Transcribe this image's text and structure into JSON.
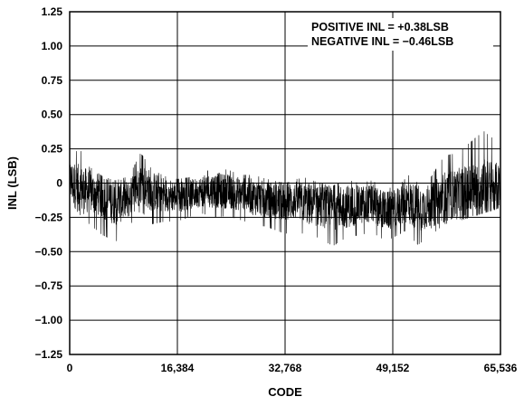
{
  "chart_data": {
    "type": "line",
    "title": "",
    "xlabel": "CODE",
    "ylabel": "INL (LSB)",
    "xlim": [
      0,
      65536
    ],
    "ylim": [
      -1.25,
      1.25
    ],
    "x_ticks": [
      0,
      16384,
      32768,
      49152,
      65536
    ],
    "x_tick_labels": [
      "0",
      "16,384",
      "32,768",
      "49,152",
      "65,536"
    ],
    "y_ticks": [
      1.25,
      1.0,
      0.75,
      0.5,
      0.25,
      0,
      -0.25,
      -0.5,
      -0.75,
      -1.0,
      -1.25
    ],
    "y_tick_labels": [
      "1.25",
      "1.00",
      "0.75",
      "0.50",
      "0.25",
      "0",
      "−0.25",
      "−0.50",
      "−0.75",
      "−1.00",
      "−1.25"
    ],
    "grid": true,
    "colors": {
      "trace": "#000000",
      "grid": "#000000",
      "background": "#ffffff"
    },
    "annotations": [
      "POSITIVE INL = +0.38LSB",
      "NEGATIVE INL = −0.46LSB"
    ],
    "series": [
      {
        "x": [
          0,
          1500,
          3000,
          5000,
          7000,
          9000,
          10800,
          12500,
          14500,
          16384,
          18000,
          20000,
          22000,
          24000,
          26000,
          28000,
          30000,
          32768,
          34500,
          36000,
          38000,
          40000,
          42000,
          44000,
          46000,
          48000,
          49152,
          51000,
          53000,
          55000,
          57000,
          59000,
          61000,
          63000,
          65536
        ],
        "y": [
          0.02,
          -0.05,
          -0.06,
          -0.1,
          -0.14,
          -0.12,
          0.0,
          -0.06,
          -0.08,
          -0.1,
          -0.09,
          -0.06,
          -0.05,
          -0.06,
          -0.08,
          -0.1,
          -0.12,
          -0.14,
          -0.13,
          -0.15,
          -0.17,
          -0.18,
          -0.17,
          -0.16,
          -0.15,
          -0.2,
          -0.2,
          -0.13,
          -0.18,
          -0.17,
          -0.1,
          -0.08,
          -0.06,
          -0.04,
          -0.03
        ],
        "max": [
          0.2,
          0.25,
          0.12,
          0.05,
          0.02,
          0.05,
          0.22,
          0.1,
          0.05,
          0.03,
          0.04,
          0.08,
          0.1,
          0.1,
          0.06,
          0.06,
          0.03,
          0.0,
          0.03,
          0.04,
          0.0,
          -0.02,
          0.03,
          0.0,
          0.02,
          -0.04,
          -0.03,
          0.08,
          0.0,
          0.05,
          0.2,
          0.22,
          0.3,
          0.38,
          0.28
        ],
        "min": [
          -0.2,
          -0.25,
          -0.3,
          -0.38,
          -0.43,
          -0.32,
          -0.2,
          -0.3,
          -0.28,
          -0.28,
          -0.25,
          -0.22,
          -0.25,
          -0.24,
          -0.27,
          -0.3,
          -0.32,
          -0.37,
          -0.35,
          -0.38,
          -0.4,
          -0.46,
          -0.4,
          -0.38,
          -0.36,
          -0.42,
          -0.4,
          -0.35,
          -0.45,
          -0.38,
          -0.3,
          -0.28,
          -0.25,
          -0.22,
          -0.18
        ]
      }
    ]
  }
}
